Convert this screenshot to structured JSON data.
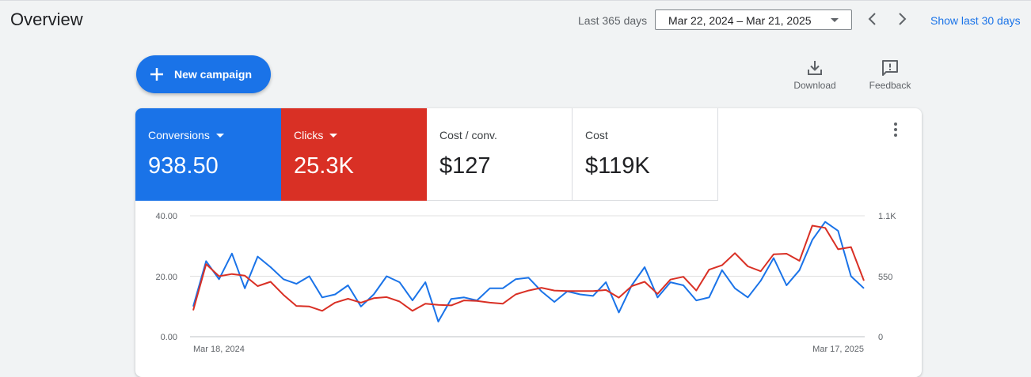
{
  "header": {
    "title": "Overview",
    "date_range_label": "Last 365 days",
    "date_range_value": "Mar 22, 2024 – Mar 21, 2025",
    "prev_icon": "chevron-left-icon",
    "next_icon": "chevron-right-icon",
    "show_last_label": "Show last 30 days"
  },
  "actions": {
    "new_campaign_label": "New campaign",
    "new_campaign_icon": "plus-icon",
    "download_label": "Download",
    "download_icon": "download-icon",
    "feedback_label": "Feedback",
    "feedback_icon": "feedback-icon"
  },
  "metrics": [
    {
      "label": "Conversions",
      "value": "938.50",
      "selected": true,
      "color": "#1a73e8"
    },
    {
      "label": "Clicks",
      "value": "25.3K",
      "selected": true,
      "color": "#d93025"
    },
    {
      "label": "Cost / conv.",
      "value": "$127",
      "selected": false
    },
    {
      "label": "Cost",
      "value": "$119K",
      "selected": false
    }
  ],
  "chart_data": {
    "type": "line",
    "x_labels": [
      "Mar 18, 2024",
      "Mar 17, 2025"
    ],
    "y_left_ticks": [
      "40.00",
      "20.00",
      "0.00"
    ],
    "y_right_ticks": [
      "1.1K",
      "550",
      "0"
    ],
    "y_left_range": [
      0,
      40
    ],
    "y_right_range": [
      0,
      1100
    ],
    "grid": true,
    "series": [
      {
        "name": "Conversions",
        "axis": "left",
        "color": "#1a73e8",
        "values": [
          10,
          25,
          19,
          27.5,
          16,
          26.5,
          23,
          19,
          17.5,
          20,
          13,
          14,
          17,
          10,
          14,
          20,
          18,
          12,
          18,
          5,
          12.5,
          13,
          12,
          16,
          16,
          19,
          19.5,
          15,
          11.5,
          15,
          14,
          13.5,
          18,
          8,
          17,
          23,
          13,
          18,
          17,
          12,
          13,
          22,
          16,
          13,
          18.5,
          26,
          17,
          22,
          32,
          38,
          35,
          20,
          16
        ]
      },
      {
        "name": "Clicks",
        "axis": "right",
        "color": "#d93025",
        "values": [
          240,
          660,
          550,
          570,
          555,
          460,
          500,
          380,
          280,
          275,
          235,
          310,
          345,
          310,
          350,
          360,
          320,
          235,
          300,
          290,
          285,
          330,
          325,
          310,
          300,
          385,
          420,
          445,
          420,
          415,
          415,
          415,
          425,
          355,
          460,
          500,
          390,
          520,
          545,
          420,
          610,
          650,
          760,
          640,
          595,
          750,
          755,
          690,
          1010,
          990,
          795,
          815,
          510
        ]
      }
    ]
  }
}
